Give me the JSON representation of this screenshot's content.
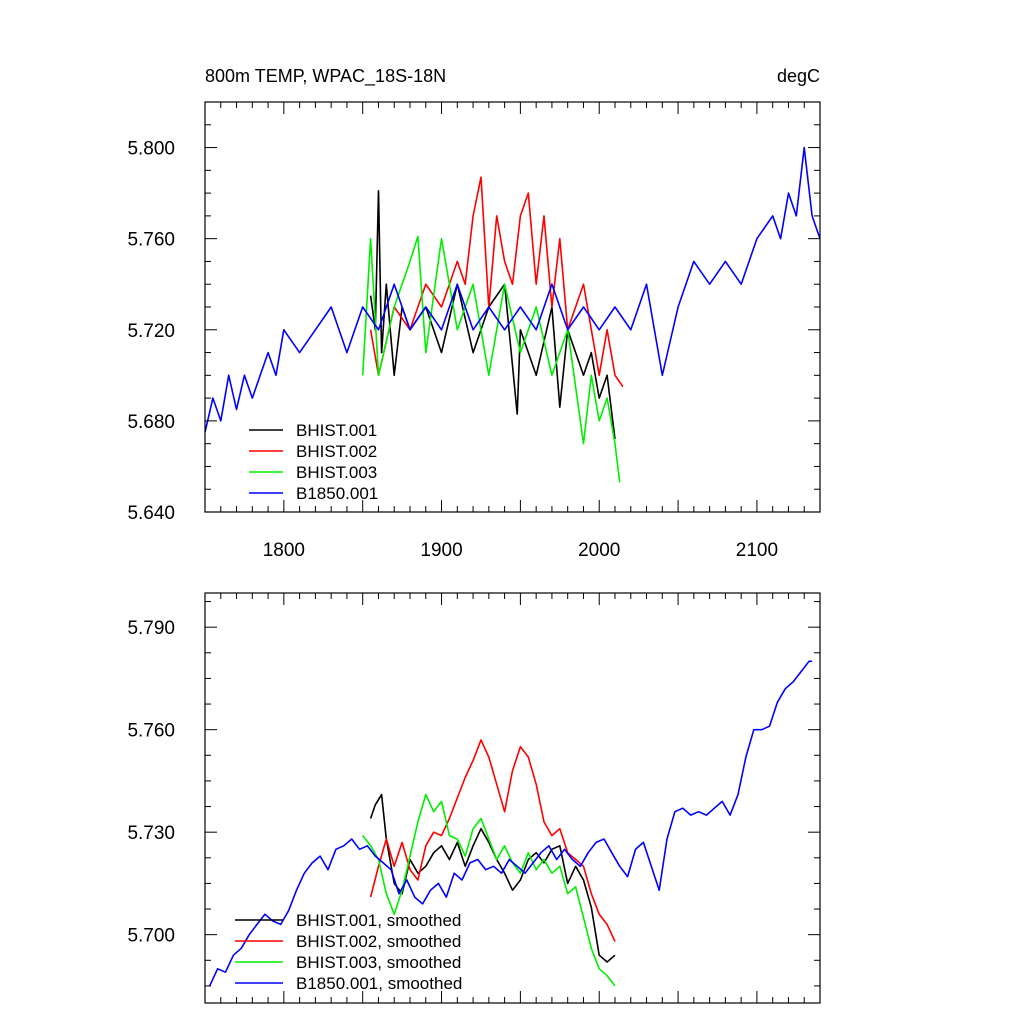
{
  "chart_data": [
    {
      "type": "line",
      "title": "800m TEMP, WPAC_18S-18N",
      "units": "degC",
      "xlim": [
        1750,
        2140
      ],
      "ylim": [
        5.64,
        5.82
      ],
      "xticks": [
        1800,
        1900,
        2000,
        2100
      ],
      "xtick_labels": [
        "1800",
        "1900",
        "2000",
        "2100"
      ],
      "yticks": [
        5.64,
        5.68,
        5.72,
        5.76,
        5.8
      ],
      "ytick_labels": [
        "5.640",
        "5.680",
        "5.720",
        "5.760",
        "5.800"
      ],
      "legend_position": "bottom-left",
      "series": [
        {
          "name": "BHIST.001",
          "color": "#000000",
          "x": [
            1855,
            1858,
            1860,
            1862,
            1865,
            1870,
            1875,
            1880,
            1890,
            1900,
            1910,
            1920,
            1930,
            1940,
            1948,
            1950,
            1960,
            1970,
            1975,
            1980,
            1990,
            1995,
            2000,
            2005,
            2010
          ],
          "y": [
            5.735,
            5.72,
            5.781,
            5.71,
            5.74,
            5.7,
            5.73,
            5.72,
            5.73,
            5.71,
            5.74,
            5.71,
            5.73,
            5.74,
            5.683,
            5.72,
            5.7,
            5.73,
            5.686,
            5.72,
            5.7,
            5.71,
            5.69,
            5.7,
            5.672
          ]
        },
        {
          "name": "BHIST.002",
          "color": "#ff0000",
          "x": [
            1855,
            1860,
            1870,
            1880,
            1890,
            1900,
            1910,
            1915,
            1920,
            1925,
            1930,
            1935,
            1940,
            1945,
            1950,
            1955,
            1960,
            1965,
            1970,
            1975,
            1980,
            1990,
            2000,
            2005,
            2010,
            2015
          ],
          "y": [
            5.72,
            5.7,
            5.73,
            5.72,
            5.74,
            5.73,
            5.75,
            5.74,
            5.77,
            5.787,
            5.73,
            5.77,
            5.75,
            5.74,
            5.77,
            5.78,
            5.74,
            5.77,
            5.73,
            5.76,
            5.72,
            5.74,
            5.7,
            5.72,
            5.7,
            5.695
          ]
        },
        {
          "name": "BHIST.003",
          "color": "#00ee00",
          "x": [
            1850,
            1855,
            1860,
            1870,
            1880,
            1885,
            1890,
            1900,
            1910,
            1920,
            1930,
            1940,
            1950,
            1960,
            1970,
            1980,
            1990,
            1995,
            2000,
            2005,
            2010,
            2013
          ],
          "y": [
            5.7,
            5.76,
            5.7,
            5.73,
            5.75,
            5.761,
            5.71,
            5.76,
            5.72,
            5.74,
            5.7,
            5.74,
            5.71,
            5.73,
            5.7,
            5.72,
            5.67,
            5.7,
            5.68,
            5.69,
            5.67,
            5.653
          ]
        },
        {
          "name": "B1850.001",
          "color": "#0000ff",
          "x": [
            1750,
            1755,
            1760,
            1765,
            1770,
            1775,
            1780,
            1785,
            1790,
            1795,
            1800,
            1810,
            1820,
            1830,
            1840,
            1850,
            1860,
            1870,
            1880,
            1890,
            1900,
            1910,
            1920,
            1930,
            1940,
            1950,
            1960,
            1970,
            1980,
            1990,
            2000,
            2010,
            2020,
            2030,
            2040,
            2050,
            2060,
            2070,
            2080,
            2090,
            2100,
            2110,
            2115,
            2120,
            2125,
            2130,
            2135,
            2140
          ],
          "y": [
            5.675,
            5.69,
            5.68,
            5.7,
            5.685,
            5.7,
            5.69,
            5.7,
            5.71,
            5.7,
            5.72,
            5.71,
            5.72,
            5.73,
            5.71,
            5.73,
            5.72,
            5.74,
            5.72,
            5.73,
            5.72,
            5.74,
            5.72,
            5.73,
            5.72,
            5.73,
            5.72,
            5.74,
            5.72,
            5.73,
            5.72,
            5.73,
            5.72,
            5.74,
            5.7,
            5.73,
            5.75,
            5.74,
            5.75,
            5.74,
            5.76,
            5.77,
            5.76,
            5.78,
            5.77,
            5.8,
            5.77,
            5.76
          ]
        }
      ]
    },
    {
      "type": "line",
      "title": "",
      "xlim": [
        1750,
        2140
      ],
      "ylim": [
        5.68,
        5.8
      ],
      "yticks": [
        5.7,
        5.73,
        5.76,
        5.79
      ],
      "ytick_labels": [
        "5.700",
        "5.730",
        "5.760",
        "5.790"
      ],
      "legend_position": "bottom-left",
      "series": [
        {
          "name": "BHIST.001, smoothed",
          "color": "#000000",
          "x": [
            1855,
            1858,
            1862,
            1865,
            1870,
            1875,
            1880,
            1885,
            1890,
            1895,
            1900,
            1905,
            1910,
            1915,
            1920,
            1925,
            1930,
            1935,
            1940,
            1945,
            1950,
            1955,
            1960,
            1965,
            1970,
            1975,
            1980,
            1985,
            1990,
            1995,
            2000,
            2005,
            2010
          ],
          "y": [
            5.734,
            5.738,
            5.741,
            5.728,
            5.715,
            5.712,
            5.722,
            5.718,
            5.72,
            5.724,
            5.726,
            5.722,
            5.727,
            5.72,
            5.726,
            5.731,
            5.727,
            5.722,
            5.718,
            5.713,
            5.716,
            5.722,
            5.724,
            5.721,
            5.725,
            5.726,
            5.715,
            5.72,
            5.716,
            5.708,
            5.694,
            5.692,
            5.694
          ]
        },
        {
          "name": "BHIST.002, smoothed",
          "color": "#ff0000",
          "x": [
            1855,
            1860,
            1865,
            1870,
            1875,
            1880,
            1885,
            1890,
            1895,
            1900,
            1905,
            1910,
            1915,
            1920,
            1925,
            1930,
            1935,
            1940,
            1945,
            1950,
            1955,
            1960,
            1965,
            1970,
            1975,
            1980,
            1985,
            1990,
            1995,
            2000,
            2005,
            2010
          ],
          "y": [
            5.711,
            5.72,
            5.728,
            5.72,
            5.727,
            5.719,
            5.716,
            5.726,
            5.73,
            5.729,
            5.734,
            5.74,
            5.746,
            5.751,
            5.757,
            5.752,
            5.744,
            5.736,
            5.748,
            5.755,
            5.752,
            5.744,
            5.733,
            5.729,
            5.731,
            5.724,
            5.722,
            5.72,
            5.712,
            5.706,
            5.703,
            5.698
          ]
        },
        {
          "name": "BHIST.003, smoothed",
          "color": "#00ee00",
          "x": [
            1850,
            1855,
            1860,
            1865,
            1870,
            1875,
            1880,
            1885,
            1890,
            1895,
            1900,
            1905,
            1910,
            1915,
            1920,
            1925,
            1930,
            1935,
            1940,
            1945,
            1950,
            1955,
            1960,
            1965,
            1970,
            1975,
            1980,
            1985,
            1990,
            1995,
            2000,
            2005,
            2010
          ],
          "y": [
            5.729,
            5.726,
            5.722,
            5.712,
            5.706,
            5.713,
            5.723,
            5.733,
            5.741,
            5.736,
            5.739,
            5.729,
            5.728,
            5.723,
            5.731,
            5.734,
            5.728,
            5.722,
            5.726,
            5.721,
            5.718,
            5.724,
            5.719,
            5.722,
            5.718,
            5.72,
            5.712,
            5.714,
            5.705,
            5.696,
            5.69,
            5.688,
            5.685
          ]
        },
        {
          "name": "B1850.001, smoothed",
          "color": "#0000ff",
          "x": [
            1753,
            1758,
            1763,
            1768,
            1773,
            1778,
            1783,
            1788,
            1793,
            1798,
            1803,
            1808,
            1813,
            1818,
            1823,
            1828,
            1833,
            1838,
            1843,
            1848,
            1853,
            1858,
            1863,
            1868,
            1873,
            1878,
            1883,
            1888,
            1893,
            1898,
            1903,
            1908,
            1913,
            1918,
            1923,
            1928,
            1933,
            1938,
            1943,
            1948,
            1953,
            1958,
            1963,
            1968,
            1973,
            1978,
            1983,
            1988,
            1993,
            1998,
            2003,
            2008,
            2013,
            2018,
            2023,
            2028,
            2033,
            2038,
            2043,
            2048,
            2053,
            2058,
            2063,
            2068,
            2073,
            2078,
            2083,
            2088,
            2093,
            2098,
            2103,
            2108,
            2113,
            2118,
            2123,
            2128,
            2133,
            2135
          ],
          "y": [
            5.685,
            5.69,
            5.689,
            5.694,
            5.696,
            5.7,
            5.703,
            5.706,
            5.704,
            5.703,
            5.707,
            5.713,
            5.718,
            5.721,
            5.723,
            5.719,
            5.725,
            5.726,
            5.728,
            5.725,
            5.726,
            5.723,
            5.721,
            5.719,
            5.712,
            5.716,
            5.711,
            5.709,
            5.713,
            5.715,
            5.711,
            5.718,
            5.716,
            5.721,
            5.722,
            5.719,
            5.72,
            5.718,
            5.722,
            5.72,
            5.718,
            5.721,
            5.724,
            5.726,
            5.722,
            5.725,
            5.722,
            5.72,
            5.724,
            5.727,
            5.728,
            5.724,
            5.72,
            5.717,
            5.725,
            5.727,
            5.72,
            5.713,
            5.728,
            5.736,
            5.737,
            5.735,
            5.736,
            5.735,
            5.737,
            5.739,
            5.735,
            5.741,
            5.752,
            5.76,
            5.76,
            5.761,
            5.768,
            5.772,
            5.774,
            5.777,
            5.78,
            5.78
          ]
        }
      ]
    }
  ]
}
